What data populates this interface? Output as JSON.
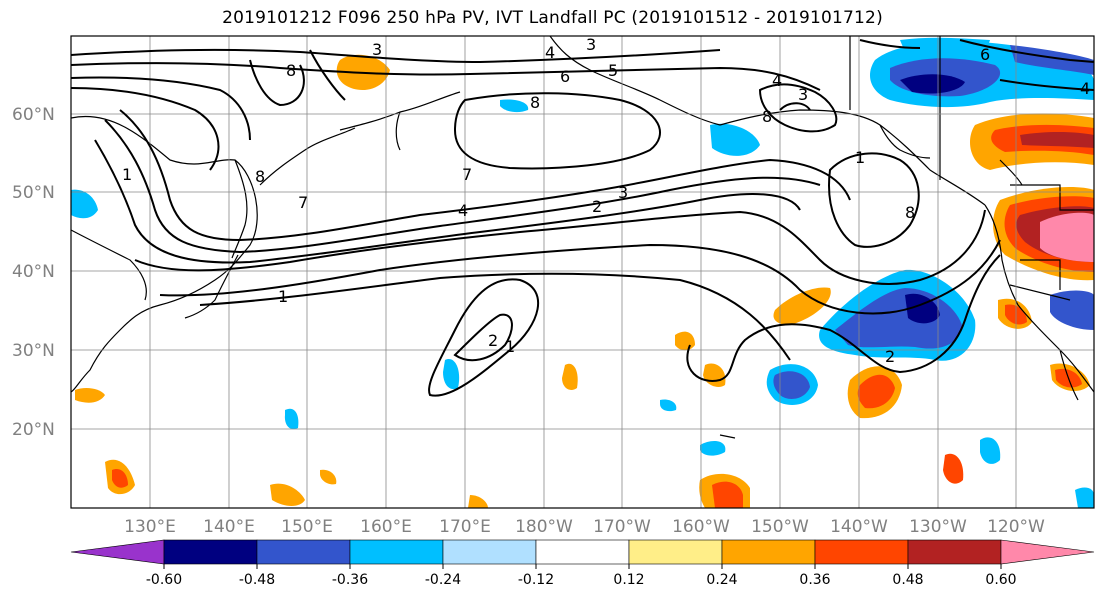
{
  "title": "2019101212 F096 250 hPa PV, IVT Landfall PC (2019101512 - 2019101712)",
  "lat_labels": [
    "60°N",
    "50°N",
    "40°N",
    "30°N",
    "20°N"
  ],
  "lon_labels": [
    "130°E",
    "140°E",
    "150°E",
    "160°E",
    "170°E",
    "180°W",
    "170°W",
    "160°W",
    "150°W",
    "140°W",
    "130°W",
    "120°W"
  ],
  "contour_labels": [
    "3",
    "4",
    "3",
    "5",
    "6",
    "8",
    "8",
    "4",
    "3",
    "6",
    "4",
    "8",
    "1",
    "8",
    "7",
    "7",
    "4",
    "2",
    "3",
    "1",
    "1",
    "8",
    "2",
    "1",
    "2"
  ],
  "colorbar": {
    "colors": [
      "#9933cc",
      "#000080",
      "#3355cc",
      "#00bfff",
      "#b0e0ff",
      "#ffffff",
      "#ffee88",
      "#ffa500",
      "#ff4500",
      "#b22222",
      "#ff88aa"
    ],
    "tick_labels": [
      "-0.60",
      "-0.48",
      "-0.36",
      "-0.24",
      "-0.12",
      "0.12",
      "0.24",
      "0.36",
      "0.48",
      "0.60"
    ]
  }
}
